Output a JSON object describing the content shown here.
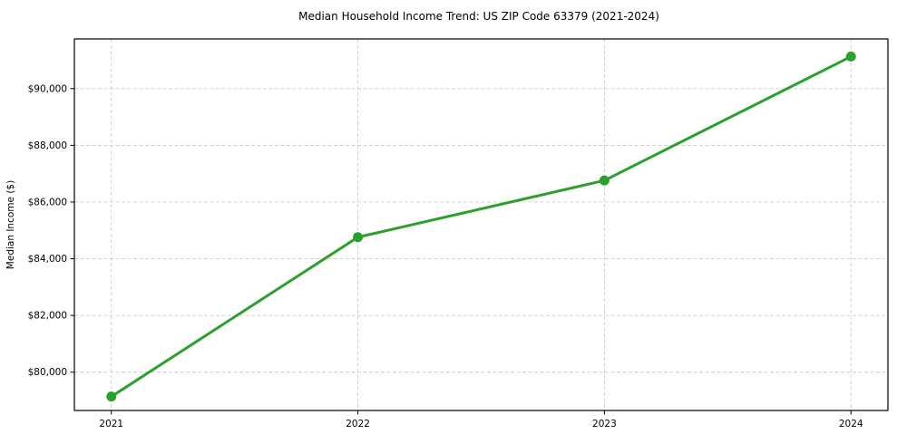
{
  "chart_data": {
    "type": "line",
    "title": "Median Household Income Trend: US ZIP Code 63379 (2021-2024)",
    "xlabel": "",
    "ylabel": "Median Income ($)",
    "x": [
      2021,
      2022,
      2023,
      2024
    ],
    "x_tick_labels": [
      "2021",
      "2022",
      "2023",
      "2024"
    ],
    "values": [
      79140,
      84760,
      86760,
      91130
    ],
    "y_ticks": {
      "values": [
        80000,
        82000,
        84000,
        86000,
        88000,
        90000
      ],
      "labels": [
        "$80,000",
        "$82,000",
        "$84,000",
        "$86,000",
        "$88,000",
        "$90,000"
      ]
    },
    "xlim": [
      2020.85,
      2024.15
    ],
    "ylim": [
      78650,
      91750
    ],
    "grid": true,
    "grid_style": "dashed",
    "grid_color": "#cccccc",
    "line_color": "#2ca02c",
    "marker": "circle",
    "legend": "none",
    "background_color": "#ffffff",
    "spine_color": "#000000"
  }
}
